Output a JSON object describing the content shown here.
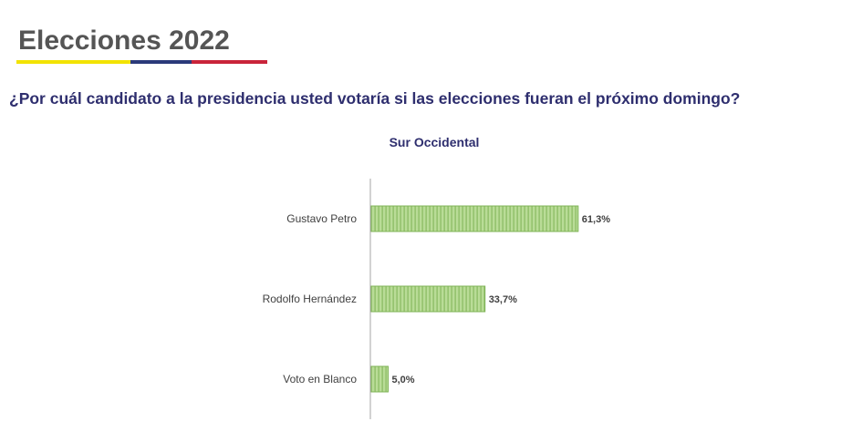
{
  "header": {
    "title": "Elecciones 2022",
    "question": "¿Por cuál candidato a la presidencia usted votaría si las elecciones fueran el próximo domingo?",
    "rule_colors": [
      "#f2e300",
      "#2b3a7a",
      "#c9243a"
    ]
  },
  "chart_data": {
    "type": "bar",
    "orientation": "horizontal",
    "title": "Sur Occidental",
    "categories": [
      "Gustavo Petro",
      "Rodolfo Hernández",
      "Voto en Blanco"
    ],
    "values": [
      61.3,
      33.7,
      5.0
    ],
    "data_labels": [
      "61,3%",
      "33,7%",
      "5,0%"
    ],
    "unit": "%",
    "xlim": [
      0,
      100
    ],
    "grid": false,
    "legend": "none",
    "colors": {
      "bar_fill": "#b9dc97",
      "bar_stripe": "#7fb356",
      "bar_edge": "#7fb356",
      "axis": "#a6a6a6"
    }
  }
}
